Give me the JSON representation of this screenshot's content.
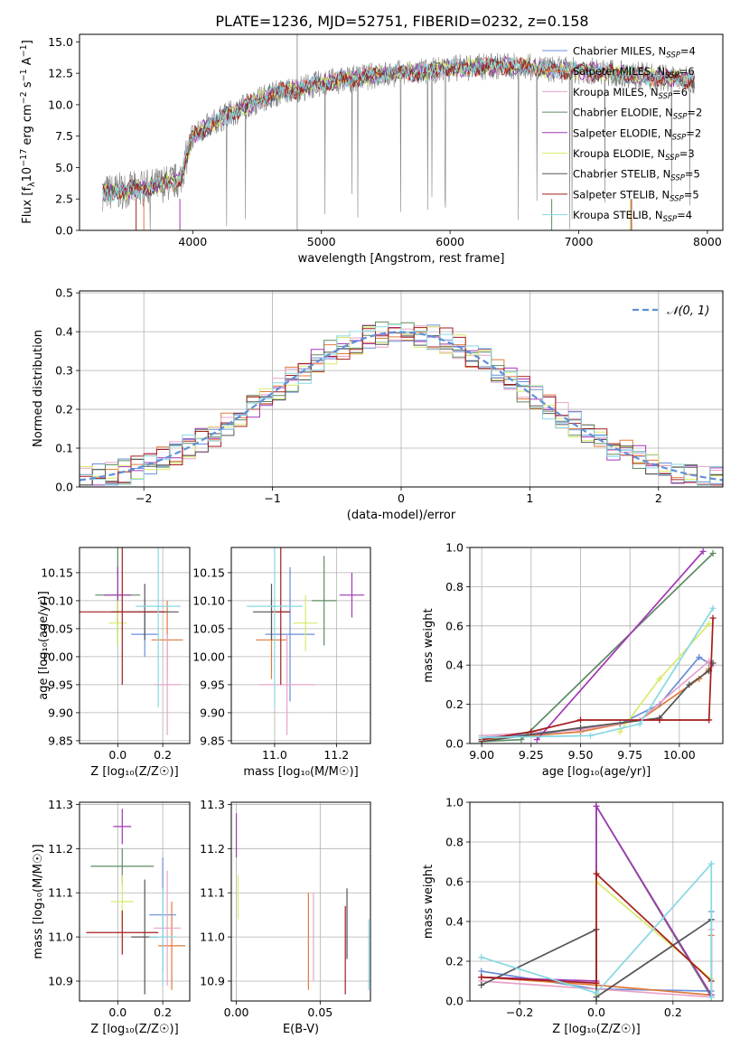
{
  "figure_title": "PLATE=1236, MJD=52751, FIBERID=0232, z=0.158",
  "colors": {
    "series": [
      "#6a8fd8",
      "#e07a3a",
      "#e8a3c8",
      "#5f8a62",
      "#a237b5",
      "#d9ea6a",
      "#555555",
      "#a51d1d",
      "#86d8e2"
    ],
    "gray": "#7f7f7f",
    "grid": "#b0b0b0",
    "normal_line": "#5f8fd8"
  },
  "chart_data": [
    {
      "id": "spectrum",
      "type": "line",
      "xlabel": "wavelength [Angstrom, rest frame]",
      "ylabel_main": "Flux [f",
      "ylabel_sub": "λ",
      "ylabel_rest": "10",
      "ylabel_exp": "−17",
      "ylabel_tail": " erg cm",
      "ylabel_exp2": "−2",
      "ylabel_tail2": " s",
      "ylabel_exp3": "−1",
      "ylabel_tail3": " A",
      "ylabel_exp4": "−1",
      "ylabel_close": "]",
      "xlim": [
        3120,
        8120
      ],
      "ylim": [
        0,
        15.6
      ],
      "xticks": [
        4000,
        5000,
        6000,
        7000,
        8000
      ],
      "yticks": [
        "0.0",
        "2.5",
        "5.0",
        "7.5",
        "10.0",
        "12.5",
        "15.0"
      ],
      "ytick_values": [
        0,
        2.5,
        5,
        7.5,
        10,
        12.5,
        15
      ],
      "legend_loc": "upper right",
      "legend": [
        {
          "name": "Chabrier MILES",
          "n": "4"
        },
        {
          "name": "Salpeter MILES",
          "n": "6"
        },
        {
          "name": "Kroupa MILES",
          "n": "6"
        },
        {
          "name": "Chabrier ELODIE",
          "n": "2"
        },
        {
          "name": "Salpeter ELODIE",
          "n": "2"
        },
        {
          "name": "Kroupa ELODIE",
          "n": "3"
        },
        {
          "name": "Chabrier STELIB",
          "n": "5"
        },
        {
          "name": "Salpeter STELIB",
          "n": "5"
        },
        {
          "name": "Kroupa STELIB",
          "n": "4"
        }
      ],
      "legend_n_label": "N",
      "legend_n_sub": "SSP",
      "continuum": {
        "wavelength": [
          3300,
          3500,
          3700,
          3900,
          4000,
          4200,
          4400,
          4600,
          4800,
          5000,
          5200,
          5400,
          5600,
          5800,
          6000,
          6200,
          6400,
          6600,
          6800,
          7000,
          7200,
          7400,
          7600,
          7800,
          7900
        ],
        "flux": [
          3.0,
          3.2,
          3.5,
          4.0,
          7.5,
          8.8,
          9.8,
          10.8,
          11.2,
          11.7,
          12.0,
          12.3,
          12.5,
          12.6,
          12.9,
          13.0,
          13.1,
          13.0,
          12.8,
          12.7,
          12.6,
          12.4,
          12.2,
          12.0,
          11.9
        ]
      }
    },
    {
      "id": "residuals",
      "type": "step-histogram",
      "xlabel": "(data-model)/error",
      "ylabel": "Normed distribution",
      "xlim": [
        -2.5,
        2.5
      ],
      "ylim": [
        0,
        0.505
      ],
      "xticks": [
        "−2",
        "−1",
        "0",
        "1",
        "2"
      ],
      "xtick_values": [
        -2,
        -1,
        0,
        1,
        2
      ],
      "yticks": [
        "0.0",
        "0.1",
        "0.2",
        "0.3",
        "0.4",
        "0.5"
      ],
      "ytick_values": [
        0,
        0.1,
        0.2,
        0.3,
        0.4,
        0.5
      ],
      "legend": "𝒩(0, 1)",
      "legend_loc": "upper right",
      "bin_width": 0.1
    },
    {
      "id": "age_vs_z",
      "type": "errorbar",
      "xlabel": "Z [log₁₀(Z/Z☉)]",
      "ylabel": "age  [log₁₀(age/yr)]",
      "xlim": [
        -0.17,
        0.32
      ],
      "ylim": [
        9.845,
        10.195
      ],
      "xticks": [
        "0.0",
        "0.2"
      ],
      "xtick_values": [
        0.0,
        0.2
      ],
      "yticks": [
        "9.85",
        "9.90",
        "9.95",
        "10.00",
        "10.05",
        "10.10",
        "10.15"
      ],
      "ytick_values": [
        9.85,
        9.9,
        9.95,
        10.0,
        10.05,
        10.1,
        10.15
      ],
      "points": [
        {
          "x": 0.12,
          "y": 10.04,
          "xe": 0.06,
          "ye": 0.04
        },
        {
          "x": 0.22,
          "y": 10.03,
          "xe": 0.07,
          "ye": 0.07
        },
        {
          "x": 0.22,
          "y": 9.95,
          "xe": 0.06,
          "ye": 0.09
        },
        {
          "x": 0.0,
          "y": 10.11,
          "xe": 0.1,
          "ye": 0.09
        },
        {
          "x": 0.0,
          "y": 10.11,
          "xe": 0.06,
          "ye": 0.05
        },
        {
          "x": 0.0,
          "y": 10.06,
          "xe": 0.04,
          "ye": 0.04
        },
        {
          "x": 0.12,
          "y": 10.08,
          "xe": 0.15,
          "ye": 0.05
        },
        {
          "x": 0.02,
          "y": 10.08,
          "xe": 0.19,
          "ye": 0.13
        },
        {
          "x": 0.18,
          "y": 10.09,
          "xe": 0.1,
          "ye": 0.18
        }
      ]
    },
    {
      "id": "age_vs_mass",
      "type": "errorbar",
      "xlabel": "mass [log₁₀(M/M☉)]",
      "ylabel": "",
      "xlim": [
        10.86,
        11.31
      ],
      "ylim": [
        9.845,
        10.195
      ],
      "xticks": [
        "11.0",
        "11.2"
      ],
      "xtick_values": [
        11.0,
        11.2
      ],
      "yticks": [
        "9.85",
        "9.90",
        "9.95",
        "10.00",
        "10.05",
        "10.10",
        "10.15"
      ],
      "ytick_values": [
        9.85,
        9.9,
        9.95,
        10.0,
        10.05,
        10.1,
        10.15
      ],
      "points": [
        {
          "x": 11.05,
          "y": 10.04,
          "xe": 0.08,
          "ye": 0.12
        },
        {
          "x": 10.99,
          "y": 10.03,
          "xe": 0.05,
          "ye": 0.07
        },
        {
          "x": 11.04,
          "y": 9.95,
          "xe": 0.09,
          "ye": 0.09
        },
        {
          "x": 11.16,
          "y": 10.1,
          "xe": 0.04,
          "ye": 0.08
        },
        {
          "x": 11.25,
          "y": 10.11,
          "xe": 0.04,
          "ye": 0.04
        },
        {
          "x": 11.1,
          "y": 10.06,
          "xe": 0.04,
          "ye": 0.05
        },
        {
          "x": 10.99,
          "y": 10.08,
          "xe": 0.06,
          "ye": 0.05
        },
        {
          "x": 11.02,
          "y": 10.08,
          "xe": 0.03,
          "ye": 0.13
        },
        {
          "x": 11.0,
          "y": 10.09,
          "xe": 0.09,
          "ye": 0.18
        }
      ]
    },
    {
      "id": "weights_vs_age",
      "type": "line",
      "xlabel": "age  [log₁₀(age/yr)]",
      "ylabel": "mass weight",
      "xlim": [
        8.94,
        10.22
      ],
      "ylim": [
        0,
        1.0
      ],
      "xticks": [
        "9.00",
        "9.25",
        "9.50",
        "9.75",
        "10.00"
      ],
      "xtick_values": [
        9.0,
        9.25,
        9.5,
        9.75,
        10.0
      ],
      "yticks": [
        "0.0",
        "0.2",
        "0.4",
        "0.6",
        "0.8",
        "1.0"
      ],
      "ytick_values": [
        0,
        0.2,
        0.4,
        0.6,
        0.8,
        1.0
      ],
      "series": [
        {
          "x": [
            9.0,
            9.3,
            9.7,
            9.9,
            10.1,
            10.15
          ],
          "y": [
            0.03,
            0.05,
            0.1,
            0.2,
            0.44,
            0.41
          ]
        },
        {
          "x": [
            9.0,
            9.5,
            9.8,
            10.1,
            10.15
          ],
          "y": [
            0.02,
            0.06,
            0.12,
            0.33,
            0.38
          ]
        },
        {
          "x": [
            9.0,
            9.5,
            9.8,
            10.15,
            10.17
          ],
          "y": [
            0.04,
            0.07,
            0.12,
            0.42,
            0.4
          ]
        },
        {
          "x": [
            9.0,
            9.2,
            10.17
          ],
          "y": [
            0.01,
            0.02,
            0.97
          ]
        },
        {
          "x": [
            9.28,
            10.12
          ],
          "y": [
            0.02,
            0.98
          ]
        },
        {
          "x": [
            9.7,
            9.9,
            10.15
          ],
          "y": [
            0.06,
            0.33,
            0.61
          ]
        },
        {
          "x": [
            9.0,
            9.5,
            9.9,
            10.05,
            10.15,
            10.17
          ],
          "y": [
            0.01,
            0.08,
            0.13,
            0.3,
            0.37,
            0.41
          ]
        },
        {
          "x": [
            9.0,
            9.25,
            9.5,
            9.9,
            10.15,
            10.17
          ],
          "y": [
            0.02,
            0.06,
            0.12,
            0.12,
            0.12,
            0.64
          ]
        },
        {
          "x": [
            9.0,
            9.55,
            9.8,
            10.17
          ],
          "y": [
            0.03,
            0.04,
            0.1,
            0.69
          ]
        }
      ]
    },
    {
      "id": "mass_vs_z",
      "type": "errorbar",
      "xlabel": "Z [log₁₀(Z/Z☉)]",
      "ylabel": "mass [log₁₀(M/M☉)]",
      "xlim": [
        -0.17,
        0.32
      ],
      "ylim": [
        10.855,
        11.305
      ],
      "xticks": [
        "0.0",
        "0.2"
      ],
      "xtick_values": [
        0.0,
        0.2
      ],
      "yticks": [
        "10.9",
        "11.0",
        "11.1",
        "11.2",
        "11.3"
      ],
      "ytick_values": [
        10.9,
        11.0,
        11.1,
        11.2,
        11.3
      ],
      "points": [
        {
          "x": 0.2,
          "y": 11.05,
          "xe": 0.06,
          "ye": 0.13
        },
        {
          "x": 0.24,
          "y": 10.98,
          "xe": 0.06,
          "ye": 0.1
        },
        {
          "x": 0.22,
          "y": 11.02,
          "xe": 0.06,
          "ye": 0.13
        },
        {
          "x": 0.02,
          "y": 11.16,
          "xe": 0.14,
          "ye": 0.04
        },
        {
          "x": 0.02,
          "y": 11.25,
          "xe": 0.04,
          "ye": 0.04
        },
        {
          "x": 0.02,
          "y": 11.08,
          "xe": 0.05,
          "ye": 0.06
        },
        {
          "x": 0.12,
          "y": 11.0,
          "xe": 0.06,
          "ye": 0.13
        },
        {
          "x": 0.02,
          "y": 11.01,
          "xe": 0.16,
          "ye": 0.05
        },
        {
          "x": 0.2,
          "y": 11.0,
          "xe": 0.06,
          "ye": 0.11
        }
      ]
    },
    {
      "id": "mass_vs_ebv",
      "type": "errorbar",
      "xlabel": "E(B-V)",
      "ylabel": "",
      "xlim": [
        -0.003,
        0.08
      ],
      "ylim": [
        10.855,
        11.305
      ],
      "xticks": [
        "0.00",
        "0.05"
      ],
      "xtick_values": [
        0.0,
        0.05
      ],
      "yticks": [
        "10.9",
        "11.0",
        "11.1",
        "11.2",
        "11.3"
      ],
      "ytick_values": [
        10.9,
        11.0,
        11.1,
        11.2,
        11.3
      ],
      "points": [
        {
          "x": 0.0,
          "y": 11.23,
          "ye": 0.05
        },
        {
          "x": 0.001,
          "y": 11.09,
          "ye": 0.05
        },
        {
          "x": 0.043,
          "y": 10.99,
          "ye": 0.11
        },
        {
          "x": 0.046,
          "y": 11.0,
          "ye": 0.1
        },
        {
          "x": 0.065,
          "y": 10.97,
          "ye": 0.1
        },
        {
          "x": 0.066,
          "y": 11.03,
          "ye": 0.08
        },
        {
          "x": 0.079,
          "y": 10.96,
          "ye": 0.08
        }
      ]
    },
    {
      "id": "weights_vs_z",
      "type": "line",
      "xlabel": "Z [log₁₀(Z/Z☉)]",
      "ylabel": "mass weight",
      "xlim": [
        -0.33,
        0.33
      ],
      "ylim": [
        0,
        1.0
      ],
      "xticks": [
        "−0.2",
        "0.0",
        "0.2"
      ],
      "xtick_values": [
        -0.2,
        0.0,
        0.2
      ],
      "yticks": [
        "0.0",
        "0.2",
        "0.4",
        "0.6",
        "0.8",
        "1.0"
      ],
      "ytick_values": [
        0,
        0.2,
        0.4,
        0.6,
        0.8,
        1.0
      ],
      "series": [
        {
          "x": [
            -0.3,
            0.0,
            0.3,
            0.3
          ],
          "y": [
            0.15,
            0.06,
            0.05,
            0.45
          ]
        },
        {
          "x": [
            -0.3,
            0.0,
            0.3,
            0.3
          ],
          "y": [
            0.12,
            0.08,
            0.03,
            0.33
          ]
        },
        {
          "x": [
            -0.3,
            0.0,
            0.3,
            0.3
          ],
          "y": [
            0.1,
            0.06,
            0.02,
            0.36
          ]
        },
        {
          "x": [
            0.0,
            0.0,
            0.3
          ],
          "y": [
            0.0,
            0.98,
            0.02
          ]
        },
        {
          "x": [
            -0.3,
            0.0,
            0.0,
            0.3
          ],
          "y": [
            0.12,
            0.1,
            0.98,
            0.03
          ]
        },
        {
          "x": [
            0.0,
            0.0,
            0.3
          ],
          "y": [
            0.03,
            0.6,
            0.11
          ]
        },
        {
          "x": [
            -0.3,
            0.0,
            0.0,
            0.3
          ],
          "y": [
            0.08,
            0.36,
            0.02,
            0.41
          ]
        },
        {
          "x": [
            -0.3,
            0.0,
            0.0,
            0.3
          ],
          "y": [
            0.12,
            0.09,
            0.64,
            0.1
          ]
        },
        {
          "x": [
            -0.3,
            0.0,
            0.3,
            0.3
          ],
          "y": [
            0.22,
            0.04,
            0.69,
            0.02
          ]
        }
      ]
    }
  ]
}
